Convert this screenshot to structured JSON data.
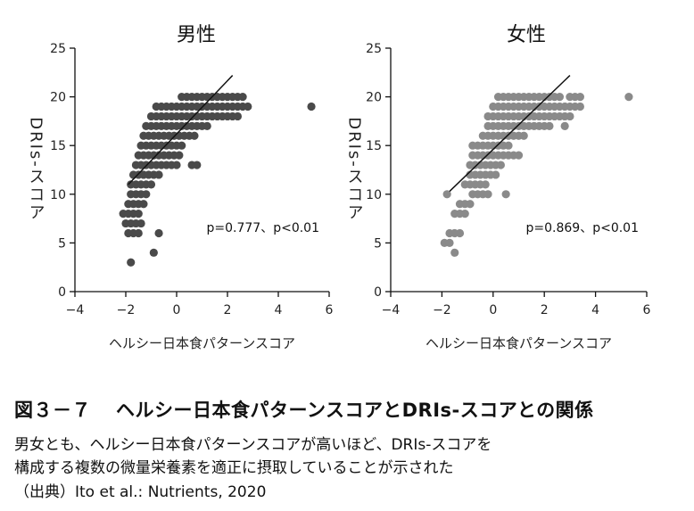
{
  "chart_data": [
    {
      "type": "scatter",
      "title": "男性",
      "xlabel": "ヘルシー日本食パターンスコア",
      "ylabel": "DRIs-スコア",
      "xlim": [
        -4,
        6
      ],
      "ylim": [
        0,
        25
      ],
      "xticks": [
        "−4",
        "−2",
        "0",
        "2",
        "4",
        "6"
      ],
      "yticks": [
        "0",
        "5",
        "10",
        "15",
        "20",
        "25"
      ],
      "annotation": "p=0.777、p<0.01",
      "point_color": "#4a4a4a",
      "points": [
        [
          -1.8,
          3
        ],
        [
          -0.9,
          4
        ],
        [
          -0.7,
          6
        ],
        [
          5.3,
          19
        ],
        [
          -1.9,
          6
        ],
        [
          -1.7,
          6
        ],
        [
          -1.5,
          6
        ],
        [
          -2.0,
          7
        ],
        [
          -1.8,
          7
        ],
        [
          -1.6,
          7
        ],
        [
          -1.4,
          7
        ],
        [
          -2.1,
          8
        ],
        [
          -1.9,
          8
        ],
        [
          -1.7,
          8
        ],
        [
          -1.5,
          8
        ],
        [
          -1.9,
          9
        ],
        [
          -1.7,
          9
        ],
        [
          -1.5,
          9
        ],
        [
          -1.3,
          9
        ],
        [
          -1.8,
          10
        ],
        [
          -1.6,
          10
        ],
        [
          -1.4,
          10
        ],
        [
          -1.2,
          10
        ],
        [
          -1.8,
          11
        ],
        [
          -1.6,
          11
        ],
        [
          -1.4,
          11
        ],
        [
          -1.2,
          11
        ],
        [
          -1.0,
          11
        ],
        [
          -1.7,
          12
        ],
        [
          -1.5,
          12
        ],
        [
          -1.3,
          12
        ],
        [
          -1.1,
          12
        ],
        [
          -0.9,
          12
        ],
        [
          -0.7,
          12
        ],
        [
          -1.6,
          13
        ],
        [
          -1.4,
          13
        ],
        [
          -1.2,
          13
        ],
        [
          -1.0,
          13
        ],
        [
          -0.8,
          13
        ],
        [
          -0.6,
          13
        ],
        [
          -0.4,
          13
        ],
        [
          -0.2,
          13
        ],
        [
          0.0,
          13
        ],
        [
          0.6,
          13
        ],
        [
          0.8,
          13
        ],
        [
          -1.5,
          14
        ],
        [
          -1.3,
          14
        ],
        [
          -1.1,
          14
        ],
        [
          -0.9,
          14
        ],
        [
          -0.7,
          14
        ],
        [
          -0.5,
          14
        ],
        [
          -0.3,
          14
        ],
        [
          -0.1,
          14
        ],
        [
          0.1,
          14
        ],
        [
          -1.4,
          15
        ],
        [
          -1.2,
          15
        ],
        [
          -1.0,
          15
        ],
        [
          -0.8,
          15
        ],
        [
          -0.6,
          15
        ],
        [
          -0.4,
          15
        ],
        [
          -0.2,
          15
        ],
        [
          0.0,
          15
        ],
        [
          0.2,
          15
        ],
        [
          -1.3,
          16
        ],
        [
          -1.1,
          16
        ],
        [
          -0.9,
          16
        ],
        [
          -0.7,
          16
        ],
        [
          -0.5,
          16
        ],
        [
          -0.3,
          16
        ],
        [
          -0.1,
          16
        ],
        [
          0.1,
          16
        ],
        [
          0.3,
          16
        ],
        [
          0.5,
          16
        ],
        [
          0.7,
          16
        ],
        [
          -1.2,
          17
        ],
        [
          -1.0,
          17
        ],
        [
          -0.8,
          17
        ],
        [
          -0.6,
          17
        ],
        [
          -0.4,
          17
        ],
        [
          -0.2,
          17
        ],
        [
          0.0,
          17
        ],
        [
          0.2,
          17
        ],
        [
          0.4,
          17
        ],
        [
          0.6,
          17
        ],
        [
          0.8,
          17
        ],
        [
          1.0,
          17
        ],
        [
          1.2,
          17
        ],
        [
          -1.0,
          18
        ],
        [
          -0.8,
          18
        ],
        [
          -0.6,
          18
        ],
        [
          -0.4,
          18
        ],
        [
          -0.2,
          18
        ],
        [
          0.0,
          18
        ],
        [
          0.2,
          18
        ],
        [
          0.4,
          18
        ],
        [
          0.6,
          18
        ],
        [
          0.8,
          18
        ],
        [
          1.0,
          18
        ],
        [
          1.2,
          18
        ],
        [
          1.4,
          18
        ],
        [
          1.6,
          18
        ],
        [
          1.8,
          18
        ],
        [
          2.0,
          18
        ],
        [
          2.2,
          18
        ],
        [
          2.4,
          18
        ],
        [
          -0.8,
          19
        ],
        [
          -0.6,
          19
        ],
        [
          -0.4,
          19
        ],
        [
          -0.2,
          19
        ],
        [
          0.0,
          19
        ],
        [
          0.2,
          19
        ],
        [
          0.4,
          19
        ],
        [
          0.6,
          19
        ],
        [
          0.8,
          19
        ],
        [
          1.0,
          19
        ],
        [
          1.2,
          19
        ],
        [
          1.4,
          19
        ],
        [
          1.6,
          19
        ],
        [
          1.8,
          19
        ],
        [
          2.0,
          19
        ],
        [
          2.2,
          19
        ],
        [
          2.4,
          19
        ],
        [
          2.6,
          19
        ],
        [
          2.8,
          19
        ],
        [
          0.2,
          20
        ],
        [
          0.4,
          20
        ],
        [
          0.6,
          20
        ],
        [
          0.8,
          20
        ],
        [
          1.0,
          20
        ],
        [
          1.2,
          20
        ],
        [
          1.4,
          20
        ],
        [
          1.6,
          20
        ],
        [
          1.8,
          20
        ],
        [
          2.0,
          20
        ],
        [
          2.2,
          20
        ],
        [
          2.4,
          20
        ],
        [
          2.6,
          20
        ]
      ],
      "regression_line": [
        [
          -1.9,
          11
        ],
        [
          2.2,
          22.2
        ]
      ]
    },
    {
      "type": "scatter",
      "title": "女性",
      "xlabel": "ヘルシー日本食パターンスコア",
      "ylabel": "DRIs-スコア",
      "xlim": [
        -4,
        6
      ],
      "ylim": [
        0,
        25
      ],
      "xticks": [
        "−4",
        "−2",
        "0",
        "2",
        "4",
        "6"
      ],
      "yticks": [
        "0",
        "5",
        "10",
        "15",
        "20",
        "25"
      ],
      "annotation": "p=0.869、p<0.01",
      "point_color": "#8a8a8a",
      "points": [
        [
          -1.5,
          4
        ],
        [
          5.3,
          20
        ],
        [
          0.5,
          10
        ],
        [
          -1.9,
          5
        ],
        [
          -1.7,
          5
        ],
        [
          -1.7,
          6
        ],
        [
          -1.5,
          6
        ],
        [
          -1.3,
          6
        ],
        [
          -1.5,
          8
        ],
        [
          -1.3,
          8
        ],
        [
          -1.1,
          8
        ],
        [
          -1.3,
          9
        ],
        [
          -1.1,
          9
        ],
        [
          -0.9,
          9
        ],
        [
          -1.8,
          10
        ],
        [
          -0.8,
          10
        ],
        [
          -0.6,
          10
        ],
        [
          -0.4,
          10
        ],
        [
          -0.2,
          10
        ],
        [
          -1.1,
          11
        ],
        [
          -0.9,
          11
        ],
        [
          -0.7,
          11
        ],
        [
          -0.5,
          11
        ],
        [
          -0.3,
          11
        ],
        [
          -0.9,
          12
        ],
        [
          -0.7,
          12
        ],
        [
          -0.5,
          12
        ],
        [
          -0.3,
          12
        ],
        [
          -0.1,
          12
        ],
        [
          0.1,
          12
        ],
        [
          -0.9,
          13
        ],
        [
          -0.7,
          13
        ],
        [
          -0.5,
          13
        ],
        [
          -0.3,
          13
        ],
        [
          -0.1,
          13
        ],
        [
          0.1,
          13
        ],
        [
          0.3,
          13
        ],
        [
          -0.8,
          14
        ],
        [
          -0.6,
          14
        ],
        [
          -0.4,
          14
        ],
        [
          -0.2,
          14
        ],
        [
          0.0,
          14
        ],
        [
          0.2,
          14
        ],
        [
          0.4,
          14
        ],
        [
          0.6,
          14
        ],
        [
          0.8,
          14
        ],
        [
          1.0,
          14
        ],
        [
          -0.8,
          15
        ],
        [
          -0.6,
          15
        ],
        [
          -0.4,
          15
        ],
        [
          -0.2,
          15
        ],
        [
          0.0,
          15
        ],
        [
          0.2,
          15
        ],
        [
          0.4,
          15
        ],
        [
          0.6,
          15
        ],
        [
          -0.4,
          16
        ],
        [
          -0.2,
          16
        ],
        [
          0.0,
          16
        ],
        [
          0.2,
          16
        ],
        [
          0.4,
          16
        ],
        [
          0.6,
          16
        ],
        [
          0.8,
          16
        ],
        [
          1.0,
          16
        ],
        [
          1.2,
          16
        ],
        [
          -0.2,
          17
        ],
        [
          0.0,
          17
        ],
        [
          0.2,
          17
        ],
        [
          0.4,
          17
        ],
        [
          0.6,
          17
        ],
        [
          0.8,
          17
        ],
        [
          1.0,
          17
        ],
        [
          1.2,
          17
        ],
        [
          1.4,
          17
        ],
        [
          1.6,
          17
        ],
        [
          1.8,
          17
        ],
        [
          2.0,
          17
        ],
        [
          2.2,
          17
        ],
        [
          2.8,
          17
        ],
        [
          -0.2,
          18
        ],
        [
          0.0,
          18
        ],
        [
          0.2,
          18
        ],
        [
          0.4,
          18
        ],
        [
          0.6,
          18
        ],
        [
          0.8,
          18
        ],
        [
          1.0,
          18
        ],
        [
          1.2,
          18
        ],
        [
          1.4,
          18
        ],
        [
          1.6,
          18
        ],
        [
          1.8,
          18
        ],
        [
          2.0,
          18
        ],
        [
          2.2,
          18
        ],
        [
          2.4,
          18
        ],
        [
          2.6,
          18
        ],
        [
          2.8,
          18
        ],
        [
          3.0,
          18
        ],
        [
          0.0,
          19
        ],
        [
          0.2,
          19
        ],
        [
          0.4,
          19
        ],
        [
          0.6,
          19
        ],
        [
          0.8,
          19
        ],
        [
          1.0,
          19
        ],
        [
          1.2,
          19
        ],
        [
          1.4,
          19
        ],
        [
          1.6,
          19
        ],
        [
          1.8,
          19
        ],
        [
          2.0,
          19
        ],
        [
          2.2,
          19
        ],
        [
          2.4,
          19
        ],
        [
          2.6,
          19
        ],
        [
          2.8,
          19
        ],
        [
          3.0,
          19
        ],
        [
          3.2,
          19
        ],
        [
          3.4,
          19
        ],
        [
          0.2,
          20
        ],
        [
          0.4,
          20
        ],
        [
          0.6,
          20
        ],
        [
          0.8,
          20
        ],
        [
          1.0,
          20
        ],
        [
          1.2,
          20
        ],
        [
          1.4,
          20
        ],
        [
          1.6,
          20
        ],
        [
          1.8,
          20
        ],
        [
          2.0,
          20
        ],
        [
          2.2,
          20
        ],
        [
          2.4,
          20
        ],
        [
          2.6,
          20
        ],
        [
          3.0,
          20
        ],
        [
          3.2,
          20
        ],
        [
          3.4,
          20
        ]
      ],
      "regression_line": [
        [
          -1.7,
          10.3
        ],
        [
          3.0,
          22.2
        ]
      ]
    }
  ],
  "caption": {
    "figure_number": "図３－７",
    "title": "ヘルシー日本食パターンスコアとDRIs-スコアとの関係",
    "line1": "男女とも、ヘルシー日本食パターンスコアが高いほど、DRIs-スコアを",
    "line2": "構成する複数の微量栄養素を適正に摂取していることが示された",
    "source": "（出典）Ito et al.: Nutrients, 2020"
  }
}
